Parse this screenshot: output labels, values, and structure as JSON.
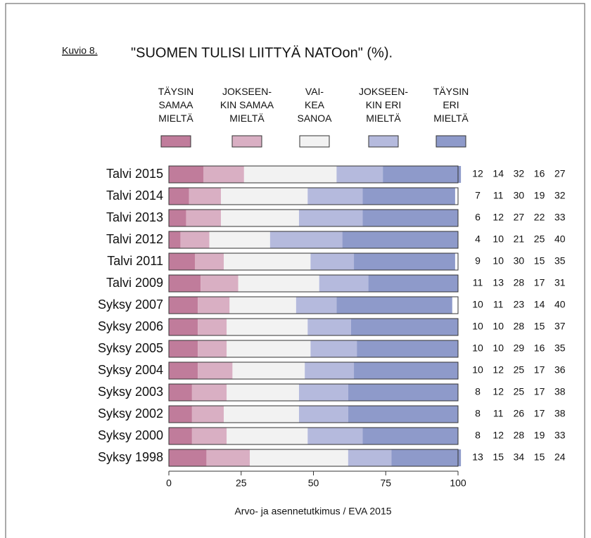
{
  "chart_data": {
    "type": "stacked-bar-horizontal",
    "label": "Kuvio 8.",
    "title": "\"SUOMEN TULISI LIITTYÄ NATOon\" (%).",
    "source": "Arvo- ja asennetutkimus / EVA 2015",
    "categories": [
      "Talvi 2015",
      "Talvi 2014",
      "Talvi 2013",
      "Talvi 2012",
      "Talvi 2011",
      "Talvi 2009",
      "Syksy 2007",
      "Syksy 2006",
      "Syksy 2005",
      "Syksy 2004",
      "Syksy 2003",
      "Syksy 2002",
      "Syksy 2000",
      "Syksy 1998"
    ],
    "series": [
      {
        "name": "TÄYSIN\nSAMAA\nMIELTÄ",
        "color": "#c07c9b",
        "values": [
          12,
          7,
          6,
          4,
          9,
          11,
          10,
          10,
          10,
          10,
          8,
          8,
          8,
          13
        ]
      },
      {
        "name": "JOKSEEN-\nKIN SAMAA\nMIELTÄ",
        "color": "#d9afc3",
        "values": [
          14,
          11,
          12,
          10,
          10,
          13,
          11,
          10,
          10,
          12,
          12,
          11,
          12,
          15
        ]
      },
      {
        "name": "VAI-\nKEA\nSANOA",
        "color": "#f2f2f2",
        "values": [
          32,
          30,
          27,
          21,
          30,
          28,
          23,
          28,
          29,
          25,
          25,
          26,
          28,
          34
        ]
      },
      {
        "name": "JOKSEEN-\nKIN ERI\nMIELTÄ",
        "color": "#b5badd",
        "values": [
          16,
          19,
          22,
          25,
          15,
          17,
          14,
          15,
          16,
          17,
          17,
          17,
          19,
          15
        ]
      },
      {
        "name": "TÄYSIN\nERI\nMIELTÄ",
        "color": "#8e9aca",
        "values": [
          27,
          32,
          33,
          40,
          35,
          31,
          40,
          37,
          35,
          36,
          38,
          38,
          33,
          24
        ]
      }
    ],
    "xlim": [
      0,
      100
    ],
    "xticks": [
      0,
      25,
      50,
      75,
      100
    ]
  }
}
